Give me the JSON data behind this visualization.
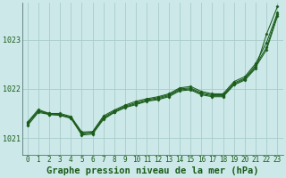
{
  "title": "Graphe pression niveau de la mer (hPa)",
  "background_color": "#cce8e8",
  "grid_color": "#aacccc",
  "line_color": "#1a5c1a",
  "ylim": [
    1020.65,
    1023.75
  ],
  "yticks": [
    1021,
    1022,
    1023
  ],
  "series": [
    [
      1021.3,
      1021.55,
      1021.5,
      1021.48,
      1021.42,
      1021.1,
      1021.12,
      1021.42,
      1021.55,
      1021.65,
      1021.72,
      1021.78,
      1021.82,
      1021.88,
      1022.0,
      1022.02,
      1021.92,
      1021.88,
      1021.88,
      1022.12,
      1022.22,
      1022.48,
      1022.85,
      1023.52
    ],
    [
      1021.32,
      1021.58,
      1021.5,
      1021.5,
      1021.44,
      1021.12,
      1021.13,
      1021.45,
      1021.57,
      1021.67,
      1021.75,
      1021.8,
      1021.84,
      1021.9,
      1022.02,
      1022.05,
      1021.95,
      1021.9,
      1021.9,
      1022.15,
      1022.25,
      1022.52,
      1022.95,
      1023.55
    ],
    [
      1021.28,
      1021.55,
      1021.48,
      1021.47,
      1021.42,
      1021.08,
      1021.1,
      1021.4,
      1021.53,
      1021.63,
      1021.7,
      1021.76,
      1021.8,
      1021.86,
      1021.98,
      1022.0,
      1021.9,
      1021.86,
      1021.86,
      1022.1,
      1022.2,
      1022.45,
      1022.8,
      1023.48
    ],
    [
      1021.25,
      1021.52,
      1021.48,
      1021.46,
      1021.4,
      1021.06,
      1021.08,
      1021.38,
      1021.52,
      1021.62,
      1021.68,
      1021.75,
      1021.78,
      1021.84,
      1021.96,
      1021.98,
      1021.88,
      1021.84,
      1021.84,
      1022.08,
      1022.18,
      1022.42,
      1023.12,
      1023.68
    ]
  ],
  "tick_fontsize": 5.5,
  "title_fontsize": 7.5
}
